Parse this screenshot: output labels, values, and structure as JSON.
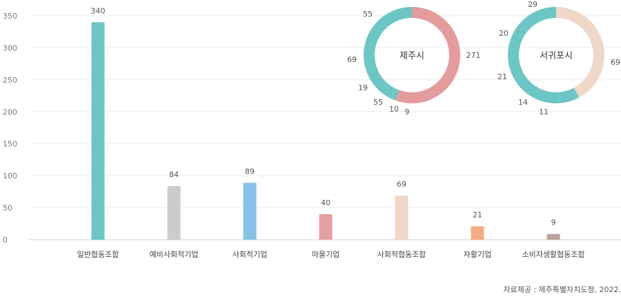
{
  "chart_data": [
    {
      "type": "bar",
      "categories": [
        "일반협동조합",
        "예비사회적기업",
        "사회적기업",
        "마을기업",
        "사회적협동조합",
        "자활기업",
        "소비자생활협동조합"
      ],
      "values": [
        340,
        84,
        89,
        40,
        69,
        21,
        9
      ],
      "colors": [
        "#6cc6c6",
        "#cccccc",
        "#84c3e5",
        "#e4a0a0",
        "#f0d8c8",
        "#f4ad80",
        "#b9a49b"
      ],
      "ylim": [
        0,
        350
      ],
      "yticks": [
        0,
        50,
        100,
        150,
        200,
        250,
        300,
        350
      ],
      "grid": true
    },
    {
      "type": "pie",
      "title": "제주시",
      "values": [
        271,
        9,
        10,
        55,
        19,
        69,
        55
      ],
      "colors": [
        "#e49b9b",
        "#6cc6c6",
        "#6cc6c6",
        "#6cc6c6",
        "#6cc6c6",
        "#6cc6c6",
        "#6cc6c6"
      ]
    },
    {
      "type": "pie",
      "title": "서귀포시",
      "values": [
        69,
        11,
        14,
        21,
        20,
        29
      ],
      "colors": [
        "#f0d8c8",
        "#6cc6c6",
        "#6cc6c6",
        "#6cc6c6",
        "#6cc6c6",
        "#6cc6c6"
      ]
    }
  ],
  "source": "자료제공 : 제주특별자치도청, 2022."
}
